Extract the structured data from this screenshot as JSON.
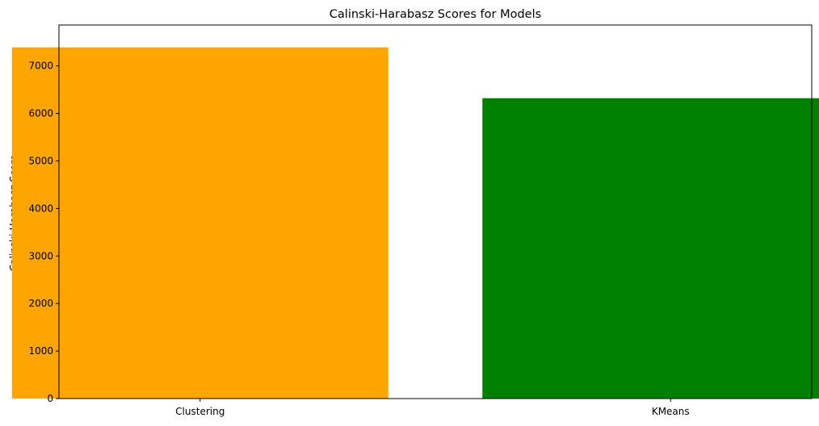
{
  "chart_data": {
    "type": "bar",
    "title": "Calinski-Harabasz Scores for Models",
    "xlabel": "",
    "ylabel": "Calinski-Harabasz Score",
    "categories": [
      "Clustering",
      "KMeans"
    ],
    "values": [
      7390,
      6320
    ],
    "colors": [
      "#ffa500",
      "#008000"
    ],
    "ylim": [
      0,
      7860
    ],
    "yticks": [
      0,
      1000,
      2000,
      3000,
      4000,
      5000,
      6000,
      7000
    ],
    "grid": false,
    "legend": "none"
  }
}
